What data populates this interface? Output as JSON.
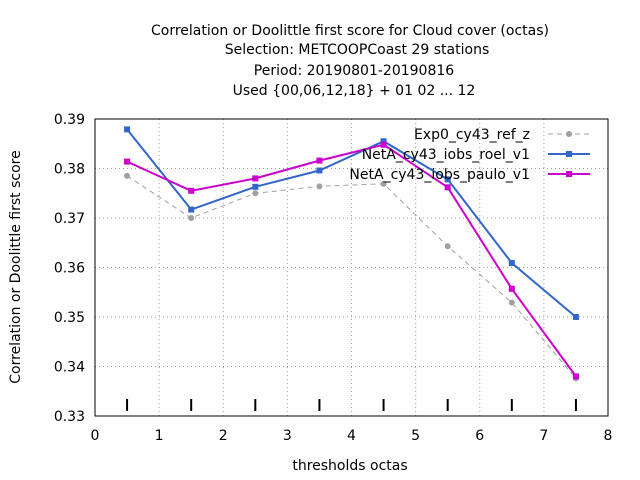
{
  "chart_data": {
    "type": "line",
    "title_lines": [
      "Correlation or Doolittle first score  for Cloud cover (octas)",
      "Selection: METCOOPCoast     29 stations",
      "Period: 20190801-20190816",
      "Used {00,06,12,18} + 01 02 ... 12"
    ],
    "xlabel": "thresholds octas",
    "ylabel": "Correlation or Doolittle first score",
    "xlim": [
      0,
      8
    ],
    "ylim": [
      0.33,
      0.39
    ],
    "xticks": [
      "0",
      "1",
      "2",
      "3",
      "4",
      "5",
      "6",
      "7",
      "8"
    ],
    "yticks": [
      "0.33",
      "0.34",
      "0.35",
      "0.36",
      "0.37",
      "0.38",
      "0.39"
    ],
    "grid": true,
    "legend_position": "top-right",
    "x": [
      0.5,
      1.5,
      2.5,
      3.5,
      4.5,
      5.5,
      6.5,
      7.5
    ],
    "series": [
      {
        "name": "Exp0_cy43_ref_z",
        "color": "#a0a0a0",
        "dashed": true,
        "values": [
          0.3785,
          0.37,
          0.375,
          0.3764,
          0.3769,
          0.3643,
          0.3529,
          0.3376
        ]
      },
      {
        "name": "NetA_cy43_iobs_roel_v1",
        "color": "#3366cc",
        "dashed": false,
        "values": [
          0.3879,
          0.3717,
          0.3763,
          0.3796,
          0.3855,
          0.3778,
          0.3609,
          0.35
        ]
      },
      {
        "name": "NetA_cy43_iobs_paulo_v1",
        "color": "#cc00cc",
        "dashed": false,
        "values": [
          0.3814,
          0.3755,
          0.378,
          0.3816,
          0.3848,
          0.3762,
          0.3557,
          0.338
        ]
      }
    ]
  }
}
